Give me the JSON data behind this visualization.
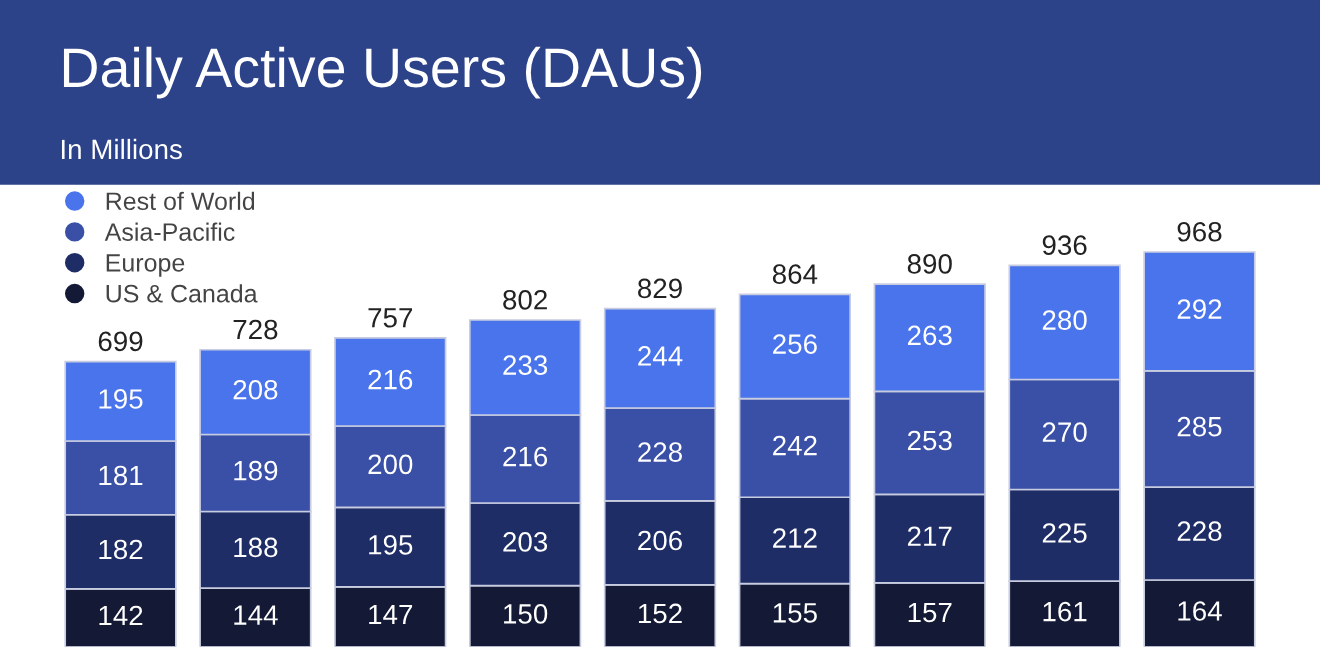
{
  "chart_data": {
    "type": "bar",
    "title": "Daily Active Users (DAUs)",
    "subtitle": "In Millions",
    "categories": [
      null,
      null,
      null,
      null,
      null,
      null,
      null,
      null,
      null
    ],
    "stacked": true,
    "data_labels": true,
    "legend": "top left",
    "totals": [
      "699",
      "728",
      "757",
      "802",
      "829",
      "864",
      "890",
      "936",
      "968"
    ],
    "series": [
      {
        "name": "US & Canada",
        "color": "#141a36",
        "values": [
          142,
          144,
          147,
          150,
          152,
          155,
          157,
          161,
          164
        ]
      },
      {
        "name": "Europe",
        "color": "#1f2d66",
        "values": [
          182,
          188,
          195,
          203,
          206,
          212,
          217,
          225,
          228
        ]
      },
      {
        "name": "Asia-Pacific",
        "color": "#3a4fa6",
        "values": [
          181,
          189,
          200,
          216,
          228,
          242,
          253,
          270,
          285
        ]
      },
      {
        "name": "Rest of World",
        "color": "#4a74ec",
        "values": [
          195,
          208,
          216,
          233,
          244,
          256,
          263,
          280,
          292
        ]
      }
    ]
  }
}
